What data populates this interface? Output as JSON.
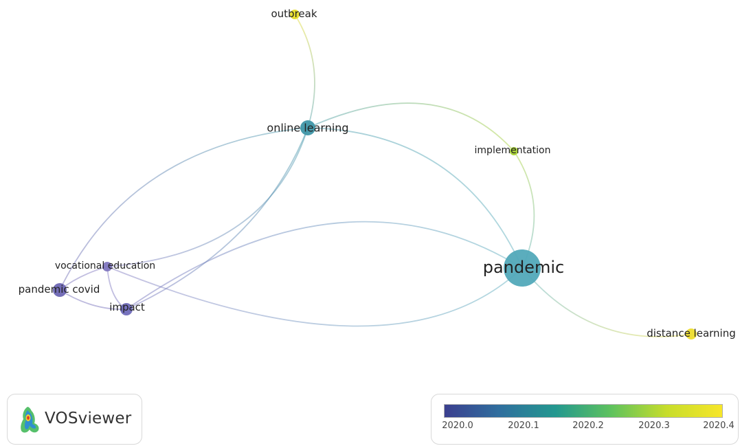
{
  "nodes": [
    {
      "id": "outbreak",
      "label": "outbreak",
      "color": "#e6dc28"
    },
    {
      "id": "online-learning",
      "label": "online learning",
      "color": "#3f96a8"
    },
    {
      "id": "implementation",
      "label": "implementation",
      "color": "#a5d030"
    },
    {
      "id": "pandemic",
      "label": "pandemic",
      "color": "#52a9b9"
    },
    {
      "id": "vocational-education",
      "label": "vocational education",
      "color": "#7f76bf"
    },
    {
      "id": "pandemic-covid",
      "label": "pandemic covid",
      "color": "#6d66b3"
    },
    {
      "id": "impact",
      "label": "impact",
      "color": "#6f6ab9"
    },
    {
      "id": "distance-learning",
      "label": "distance learning",
      "color": "#eddd2c"
    }
  ],
  "links": [
    {
      "from": "outbreak",
      "to": "online-learning"
    },
    {
      "from": "online-learning",
      "to": "pandemic"
    },
    {
      "from": "online-learning",
      "to": "implementation"
    },
    {
      "from": "online-learning",
      "to": "pandemic-covid"
    },
    {
      "from": "online-learning",
      "to": "vocational-education"
    },
    {
      "from": "online-learning",
      "to": "impact"
    },
    {
      "from": "implementation",
      "to": "pandemic"
    },
    {
      "from": "pandemic",
      "to": "distance-learning"
    },
    {
      "from": "pandemic",
      "to": "impact"
    },
    {
      "from": "pandemic",
      "to": "vocational-education"
    },
    {
      "from": "vocational-education",
      "to": "impact"
    },
    {
      "from": "vocational-education",
      "to": "pandemic-covid"
    },
    {
      "from": "pandemic-covid",
      "to": "impact"
    }
  ],
  "logo": {
    "text": "VOSviewer"
  },
  "scale": {
    "colors": [
      "#3b3f8f",
      "#2f6f9e",
      "#23988f",
      "#5ec25e",
      "#c7dd2b",
      "#f7e62a"
    ],
    "ticks": [
      "2020.0",
      "2020.1",
      "2020.2",
      "2020.3",
      "2020.4"
    ]
  }
}
